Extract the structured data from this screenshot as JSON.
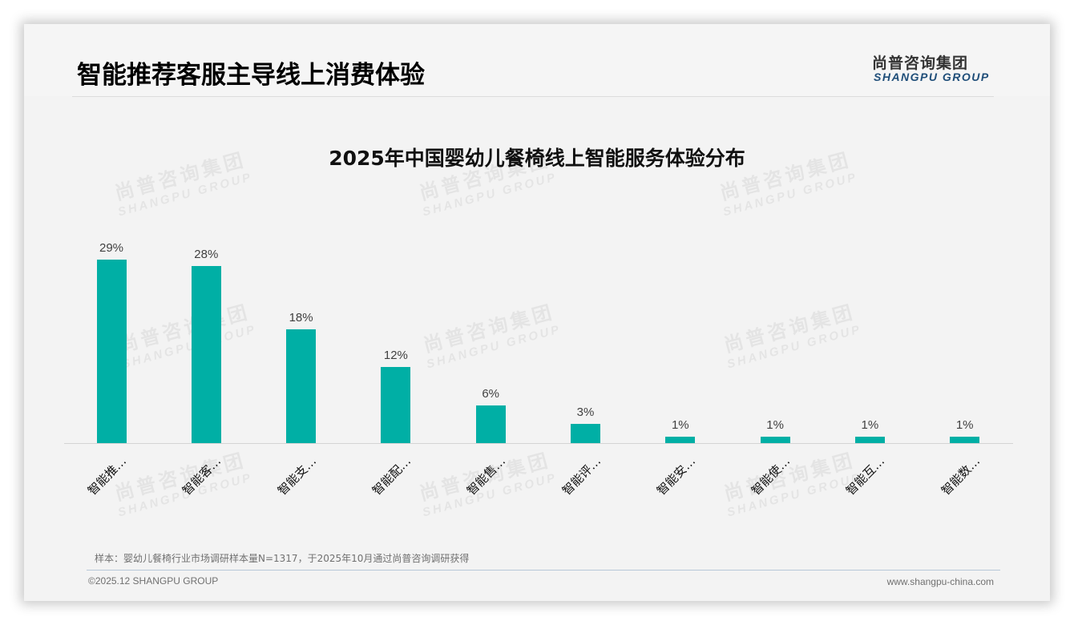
{
  "header": {
    "page_title": "智能推荐客服主导线上消费体验",
    "logo_cn": "尚普咨询集团",
    "logo_en": "SHANGPU GROUP"
  },
  "watermark": {
    "cn": "尚普咨询集团",
    "en": "SHANGPU GROUP"
  },
  "colors": {
    "bar": "#00afa5",
    "logo_en": "#1f4e79",
    "background": "#f3f3f3"
  },
  "chart_data": {
    "type": "bar",
    "title": "2025年中国婴幼儿餐椅线上智能服务体验分布",
    "categories": [
      "智能推…",
      "智能客…",
      "智能支…",
      "智能配…",
      "智能售…",
      "智能评…",
      "智能安…",
      "智能使…",
      "智能互…",
      "智能数…"
    ],
    "values": [
      29,
      28,
      18,
      12,
      6,
      3,
      1,
      1,
      1,
      1
    ],
    "value_labels": [
      "29%",
      "28%",
      "18%",
      "12%",
      "6%",
      "3%",
      "1%",
      "1%",
      "1%",
      "1%"
    ],
    "unit": "%",
    "xlabel": "",
    "ylabel": "",
    "grid": false,
    "legend": "none",
    "x_tick_rotation": -45
  },
  "footer": {
    "note": "样本：婴幼儿餐椅行业市场调研样本量N=1317，于2025年10月通过尚普咨询调研获得",
    "copyright": "©2025.12 SHANGPU GROUP",
    "website": "www.shangpu-china.com"
  }
}
